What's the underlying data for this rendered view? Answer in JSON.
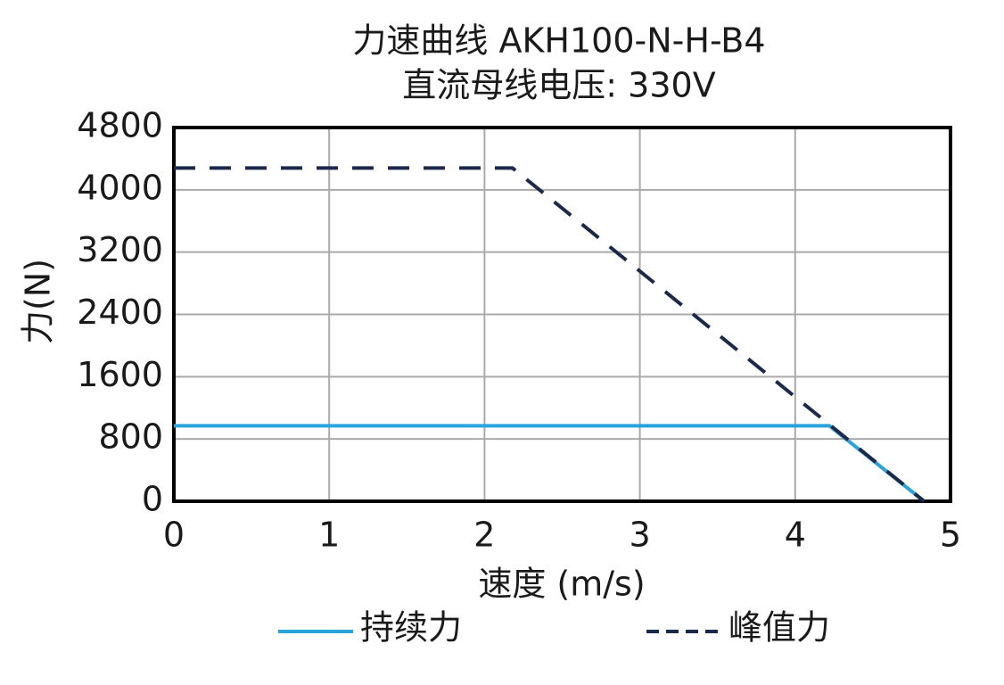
{
  "chart_data": {
    "type": "line",
    "title": "力速曲线 AKH100-N-H-B4",
    "subtitle": "直流母线电压: 330V",
    "x_label": "速度 (m/s)",
    "y_label": "力(N)",
    "xlim": [
      0,
      5
    ],
    "xticks": [
      0,
      1,
      2,
      3,
      4,
      5
    ],
    "ylim": [
      0,
      4800
    ],
    "yticks": [
      0,
      800,
      1600,
      2400,
      3200,
      4000,
      4800
    ],
    "grid": true,
    "legend": "bottom",
    "series": [
      {
        "name": "持续力",
        "color": "#29a3dc",
        "line_style": "solid",
        "x": [
          0,
          4.22,
          4.83
        ],
        "values": [
          970,
          970,
          0
        ]
      },
      {
        "name": "峰值力",
        "color": "#1b2a4a",
        "line_style": "dashed",
        "x": [
          0,
          2.18,
          4.83
        ],
        "values": [
          4280,
          4280,
          0
        ]
      }
    ]
  }
}
